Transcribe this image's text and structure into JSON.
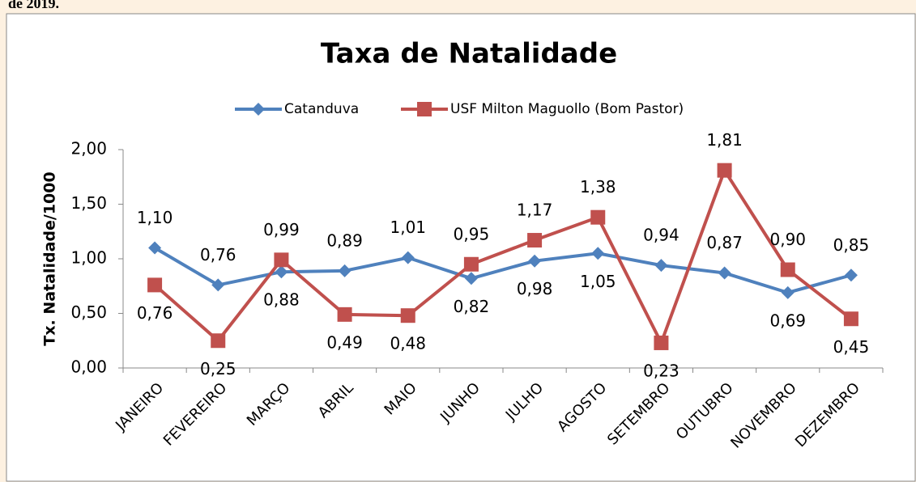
{
  "caption": "de 2019.",
  "chart_data": {
    "type": "line",
    "title": "Taxa de Natalidade",
    "y_label": "Tx. Natalidade/1000",
    "categories": [
      "JANEIRO",
      "FEVEREIRO",
      "MARÇO",
      "ABRIL",
      "MAIO",
      "JUNHO",
      "JULHO",
      "AGOSTO",
      "SETEMBRO",
      "OUTUBRO",
      "NOVEMBRO",
      "DEZEMBRO"
    ],
    "series": [
      {
        "name": "Catanduva",
        "color": "#4f81bd",
        "marker": "diamond",
        "values": [
          1.1,
          0.76,
          0.88,
          0.89,
          1.01,
          0.82,
          0.98,
          1.05,
          0.94,
          0.87,
          0.69,
          0.85
        ],
        "value_labels": [
          "1,10",
          "0,76",
          "0,88",
          "0,89",
          "1,01",
          "0,82",
          "0,98",
          "1,05",
          "0,94",
          "0,87",
          "0,69",
          "0,85"
        ]
      },
      {
        "name": "USF Milton Maguollo (Bom Pastor)",
        "color": "#c0504d",
        "marker": "square",
        "values": [
          0.76,
          0.25,
          0.99,
          0.49,
          0.48,
          0.95,
          1.17,
          1.38,
          0.23,
          1.81,
          0.9,
          0.45
        ],
        "value_labels": [
          "0,76",
          "0,25",
          "0,99",
          "0,49",
          "0,48",
          "0,95",
          "1,17",
          "1,38",
          "0,23",
          "1,81",
          "0,90",
          "0,45"
        ]
      }
    ],
    "ylim": [
      0,
      2
    ],
    "yticks": [
      {
        "value": 0,
        "label": "0,00"
      },
      {
        "value": 0.5,
        "label": "0,50"
      },
      {
        "value": 1,
        "label": "1,00"
      },
      {
        "value": 1.5,
        "label": "1,50"
      },
      {
        "value": 2,
        "label": "2,00"
      }
    ],
    "legend": "top",
    "grid": false
  }
}
